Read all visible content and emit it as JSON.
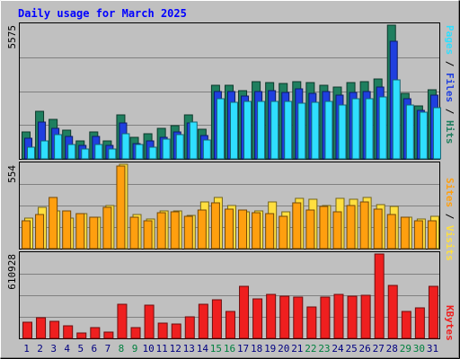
{
  "chart_data": {
    "type": "bar",
    "title": "Daily usage for March 2025",
    "x": [
      "1",
      "2",
      "3",
      "4",
      "5",
      "6",
      "7",
      "8",
      "9",
      "10",
      "11",
      "12",
      "13",
      "14",
      "15",
      "16",
      "17",
      "18",
      "19",
      "20",
      "21",
      "22",
      "23",
      "24",
      "25",
      "26",
      "27",
      "28",
      "29",
      "30",
      "31"
    ],
    "weekend_days": [
      "8",
      "9",
      "15",
      "16",
      "22",
      "23",
      "29",
      "30"
    ],
    "panels": [
      {
        "id": "hits",
        "max_label": "5575",
        "ymax": 5575,
        "series": [
          {
            "name": "Hits",
            "color": "#1f7f5f",
            "values": [
              1110,
              1974,
              1635,
              1190,
              740,
              1140,
              740,
              1850,
              900,
              1030,
              1280,
              1390,
              1850,
              1220,
              3070,
              3070,
              2855,
              3215,
              3165,
              3155,
              3215,
              3185,
              3055,
              2985,
              3175,
              3225,
              3340,
              5575,
              2715,
              2205,
              2885
            ]
          },
          {
            "name": "Files",
            "color": "#1f3fdf",
            "values": [
              860,
              1530,
              1275,
              935,
              570,
              950,
              570,
              1490,
              650,
              730,
              910,
              1130,
              1480,
              960,
              2790,
              2800,
              2625,
              2815,
              2850,
              2780,
              2910,
              2725,
              2815,
              2655,
              2755,
              2805,
              2975,
              4900,
              2515,
              2015,
              2655
            ]
          },
          {
            "name": "Pages",
            "color": "#2fdfff",
            "values": [
              480,
              760,
              1020,
              600,
              430,
              600,
              430,
              1045,
              600,
              500,
              840,
              1010,
              1520,
              800,
              2520,
              2345,
              2380,
              2410,
              2380,
              2380,
              2330,
              2340,
              2395,
              2230,
              2520,
              2520,
              2595,
              3280,
              2245,
              1940,
              2125
            ]
          }
        ]
      },
      {
        "id": "visits",
        "max_label": "554",
        "ymax": 554,
        "series": [
          {
            "name": "Visits",
            "color": "#ffdf3f",
            "values": [
              200,
              272,
              246,
              200,
              229,
              209,
              283,
              554,
              222,
              196,
              249,
              249,
              219,
              309,
              338,
              285,
              243,
              249,
              305,
              244,
              331,
              324,
              285,
              331,
              324,
              334,
              291,
              275,
              209,
              196,
              212
            ]
          },
          {
            "name": "Sites",
            "color": "#ff9f0f",
            "values": [
              184,
              222,
              334,
              246,
              232,
              209,
              272,
              544,
              209,
              182,
              233,
              242,
              211,
              254,
              301,
              262,
              255,
              237,
              229,
              214,
              298,
              251,
              278,
              243,
              282,
              306,
              259,
              223,
              209,
              183,
              181
            ]
          }
        ]
      },
      {
        "id": "kbytes",
        "max_label": "610928",
        "ymax": 610928,
        "series": [
          {
            "name": "KBytes",
            "color": "#ef1f1f",
            "values": [
              120000,
              152000,
              122000,
              92000,
              38000,
              80000,
              44000,
              250000,
              76000,
              240000,
              108000,
              105000,
              158000,
              248000,
              282000,
              195000,
              375000,
              288000,
              318000,
              305000,
              302000,
              228000,
              300000,
              317000,
              305000,
              310000,
              610928,
              385000,
              195000,
              222000,
              375000
            ]
          }
        ]
      }
    ],
    "legend_top": [
      {
        "text": "Pages",
        "color": "#2fdfff"
      },
      {
        "text": " / ",
        "color": "#000000"
      },
      {
        "text": "Files",
        "color": "#1f3fdf"
      },
      {
        "text": " / ",
        "color": "#000000"
      },
      {
        "text": "Hits",
        "color": "#1f7f5f"
      }
    ],
    "legend_mid": [
      {
        "text": "Sites",
        "color": "#ff9f0f"
      },
      {
        "text": " / ",
        "color": "#000000"
      },
      {
        "text": "Visits",
        "color": "#ffdf3f"
      }
    ],
    "legend_bottom": [
      {
        "text": "KBytes",
        "color": "#ef1f1f"
      }
    ],
    "colors": {
      "title": "#0000ff",
      "background": "#c0c0c0",
      "weekday_label": "#000080",
      "weekend_label": "#00803f"
    }
  }
}
